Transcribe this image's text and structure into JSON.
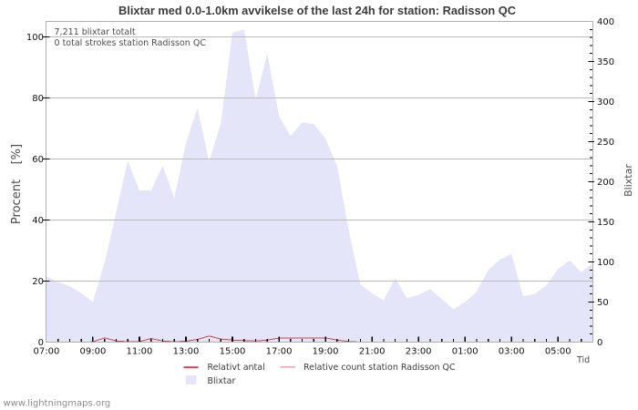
{
  "title": "Blixtar med 0.0-1.0km avvikelse of the last 24h for station: Radisson QC",
  "annotations": {
    "total": "7,211 blixtar totalt",
    "station_total": "0 total strokes station Radisson QC"
  },
  "watermark": "www.lightningmaps.org",
  "colors": {
    "area": "#e5e5f9",
    "relative_line": "#c84850",
    "station_line": "#f4a6a6",
    "grid": "#bbbbbb",
    "frame": "#b0b0b0",
    "tick": "#000000",
    "title_text": "#3c3c3c",
    "label_text": "#111111",
    "muted_text": "#4d4d4d",
    "watermark_text": "#8c8c8c"
  },
  "axes": {
    "x": {
      "title": "Tid",
      "tick_labels": [
        "07:00",
        "09:00",
        "11:00",
        "13:00",
        "15:00",
        "17:00",
        "19:00",
        "21:00",
        "23:00",
        "01:00",
        "03:00",
        "05:00"
      ],
      "minor_interval_hours": 0.5,
      "major_interval_hours": 2,
      "start": "07:00",
      "end": "06:30"
    },
    "y_left": {
      "title": "Procent    [%]",
      "tick_labels": [
        "0",
        "20",
        "40",
        "60",
        "80",
        "100"
      ],
      "ticks": [
        0,
        20,
        40,
        60,
        80,
        100
      ],
      "range": [
        0,
        100
      ]
    },
    "y_right": {
      "title": "Blixtar",
      "tick_labels": [
        "0",
        "50",
        "100",
        "150",
        "200",
        "250",
        "300",
        "350",
        "400"
      ],
      "ticks": [
        0,
        50,
        100,
        150,
        200,
        250,
        300,
        350,
        400
      ],
      "minor_step": 10,
      "range": [
        0,
        400
      ]
    }
  },
  "legend": {
    "items": [
      {
        "label": "Relativt antal",
        "swatch": "line",
        "color": "#c84850"
      },
      {
        "label": "Relative count station Radisson QC",
        "swatch": "line",
        "color": "#f4a6a6"
      },
      {
        "label": "Blixtar",
        "swatch": "area",
        "color": "#e5e5f9"
      }
    ]
  },
  "chart_data": {
    "type": "area",
    "x_times": [
      "07:00",
      "07:30",
      "08:00",
      "08:30",
      "09:00",
      "09:30",
      "10:00",
      "10:30",
      "11:00",
      "11:30",
      "12:00",
      "12:30",
      "13:00",
      "13:30",
      "14:00",
      "14:30",
      "15:00",
      "15:30",
      "16:00",
      "16:30",
      "17:00",
      "17:30",
      "18:00",
      "18:30",
      "19:00",
      "19:30",
      "20:00",
      "20:30",
      "21:00",
      "21:30",
      "22:00",
      "22:30",
      "23:00",
      "23:30",
      "00:00",
      "00:30",
      "01:00",
      "01:30",
      "02:00",
      "02:30",
      "03:00",
      "03:30",
      "04:00",
      "04:30",
      "05:00",
      "05:30",
      "06:00",
      "06:30"
    ],
    "series": [
      {
        "name": "Blixtar",
        "type": "area",
        "axis": "right",
        "color": "#e5e5f9",
        "values": [
          82,
          75,
          70,
          61,
          50,
          99,
          162,
          226,
          189,
          189,
          220,
          180,
          248,
          292,
          225,
          273,
          386,
          390,
          303,
          360,
          282,
          257,
          274,
          272,
          254,
          220,
          140,
          72,
          61,
          52,
          80,
          55,
          59,
          66,
          54,
          41,
          50,
          63,
          90,
          103,
          110,
          57,
          60,
          71,
          91,
          102,
          87,
          99
        ]
      },
      {
        "name": "Relativt antal",
        "type": "line",
        "axis": "left",
        "color": "#c84850",
        "values": [
          0,
          0,
          0,
          0,
          0.1,
          1.4,
          0.4,
          0.15,
          0.15,
          1.2,
          0.35,
          0.15,
          0.3,
          0.9,
          2.0,
          1.0,
          0.7,
          0.5,
          0.35,
          0.7,
          1.3,
          1.4,
          1.4,
          1.4,
          1.4,
          0.7,
          0.2,
          0,
          0,
          0,
          0,
          0,
          0,
          0,
          0,
          0,
          0,
          0,
          0,
          0,
          0,
          0,
          0,
          0,
          0,
          0,
          0,
          0
        ]
      },
      {
        "name": "Relative count station Radisson QC",
        "type": "line",
        "axis": "left",
        "color": "#f4a6a6",
        "values": [
          0,
          0,
          0,
          0,
          0,
          0,
          0,
          0,
          0,
          0,
          0,
          0,
          0,
          0,
          0,
          0,
          0,
          0,
          0,
          0,
          0,
          0,
          0,
          0,
          0,
          0,
          0,
          0,
          0,
          0,
          0,
          0,
          0,
          0,
          0,
          0,
          0,
          0,
          0,
          0,
          0,
          0,
          0,
          0,
          0,
          0,
          0,
          0
        ]
      }
    ],
    "y_left_range": [
      0,
      100
    ],
    "y_right_range": [
      0,
      400
    ],
    "grid": "horizontal",
    "legend_position": "bottom"
  }
}
